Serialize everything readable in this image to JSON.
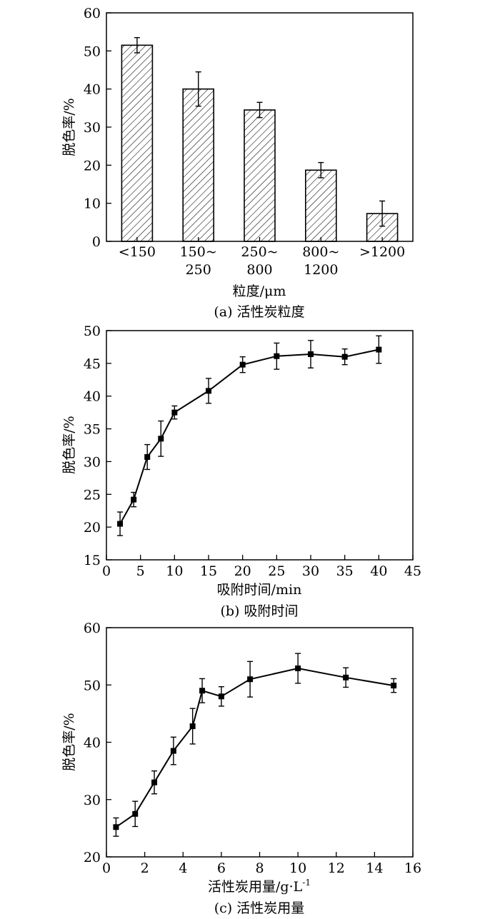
{
  "chart_data": [
    {
      "type": "bar",
      "title": "",
      "caption": "(a) 活性炭粒度",
      "xlabel": "粒度/μm",
      "ylabel": "脱色率/%",
      "ylim": [
        0,
        60
      ],
      "yticks": [
        0,
        10,
        20,
        30,
        40,
        50,
        60
      ],
      "grid": false,
      "categories": [
        [
          "<150"
        ],
        [
          "150~",
          "250"
        ],
        [
          "250~",
          "800"
        ],
        [
          "800~",
          "1200"
        ],
        [
          ">1200"
        ]
      ],
      "values": [
        51.5,
        40.0,
        34.5,
        18.7,
        7.3
      ],
      "errors": [
        2.0,
        4.5,
        2.0,
        2.0,
        3.3
      ],
      "fill_pattern": "diagonal-hatch"
    },
    {
      "type": "line",
      "title": "",
      "caption": "(b) 吸附时间",
      "xlabel": "吸附时间/min",
      "ylabel": "脱色率/%",
      "xlim": [
        0,
        45
      ],
      "ylim": [
        15,
        50
      ],
      "xticks": [
        0,
        5,
        10,
        15,
        20,
        25,
        30,
        35,
        40,
        45
      ],
      "yticks": [
        15,
        20,
        25,
        30,
        35,
        40,
        45,
        50
      ],
      "grid": false,
      "x": [
        2,
        4,
        6,
        8,
        10,
        15,
        20,
        25,
        30,
        35,
        40
      ],
      "y": [
        20.5,
        24.2,
        30.7,
        33.5,
        37.5,
        40.8,
        44.8,
        46.1,
        46.4,
        46.0,
        47.1
      ],
      "errors": [
        1.8,
        1.1,
        1.9,
        2.7,
        1.0,
        1.9,
        1.2,
        2.0,
        2.1,
        1.2,
        2.1
      ],
      "marker": "square"
    },
    {
      "type": "line",
      "title": "",
      "caption": "(c) 活性炭用量",
      "xlabel_main": "活性炭用量/g·L",
      "xlabel_sup": "-1",
      "ylabel": "脱色率/%",
      "xlim": [
        0,
        16
      ],
      "ylim": [
        20,
        60
      ],
      "xticks": [
        0,
        2,
        4,
        6,
        8,
        10,
        12,
        14,
        16
      ],
      "yticks": [
        20,
        30,
        40,
        50,
        60
      ],
      "grid": false,
      "x": [
        0.5,
        1.5,
        2.5,
        3.5,
        4.5,
        5.0,
        6.0,
        7.5,
        10.0,
        12.5,
        15.0
      ],
      "y": [
        25.2,
        27.5,
        33.0,
        38.5,
        42.8,
        49.0,
        48.0,
        51.0,
        52.9,
        51.3,
        49.9
      ],
      "errors": [
        1.6,
        2.2,
        2.0,
        2.4,
        3.1,
        2.1,
        1.7,
        3.1,
        2.6,
        1.7,
        1.2
      ],
      "marker": "square"
    }
  ]
}
